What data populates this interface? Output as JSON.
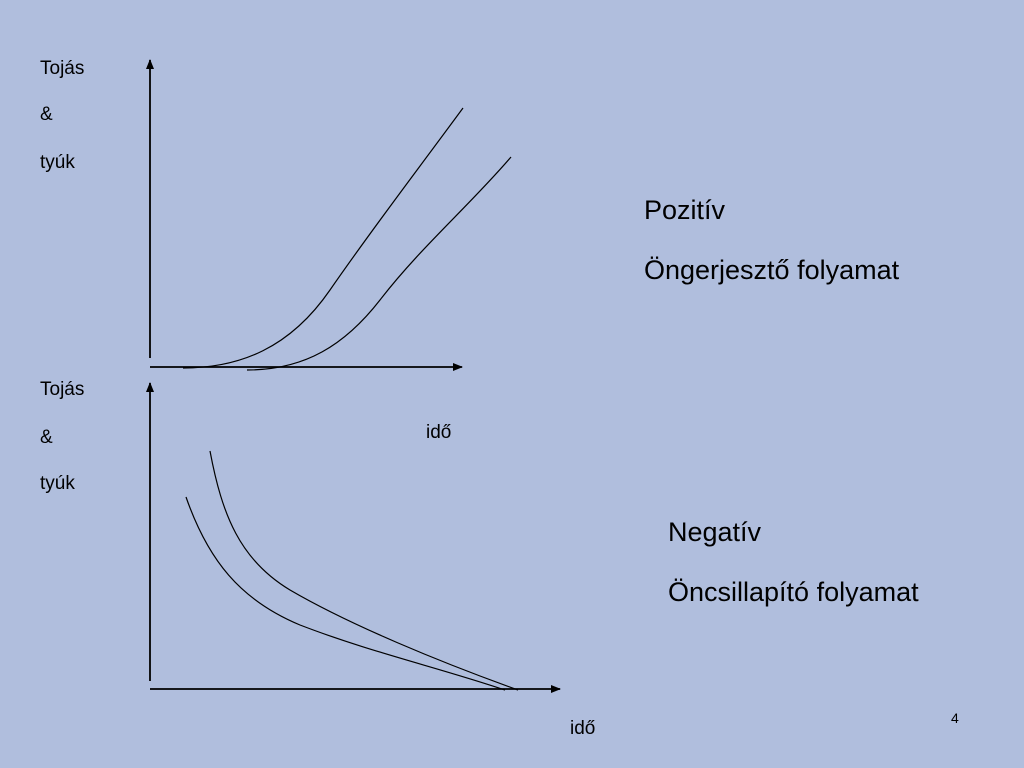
{
  "slide": {
    "page_number": "4",
    "background_color": "#b0bedd"
  },
  "top_graph": {
    "y_label_line1": "Tojás",
    "y_label_line2": "&",
    "y_label_line3": "tyúk",
    "x_label": "idő"
  },
  "bottom_graph": {
    "y_label_line1": "Tojás",
    "y_label_line2": "&",
    "y_label_line3": "tyúk",
    "x_label": "idő"
  },
  "positive": {
    "title": "Pozitív",
    "subtitle": "Öngerjesztő folyamat"
  },
  "negative": {
    "title": "Negatív",
    "subtitle": "Öncsillapító folyamat"
  }
}
